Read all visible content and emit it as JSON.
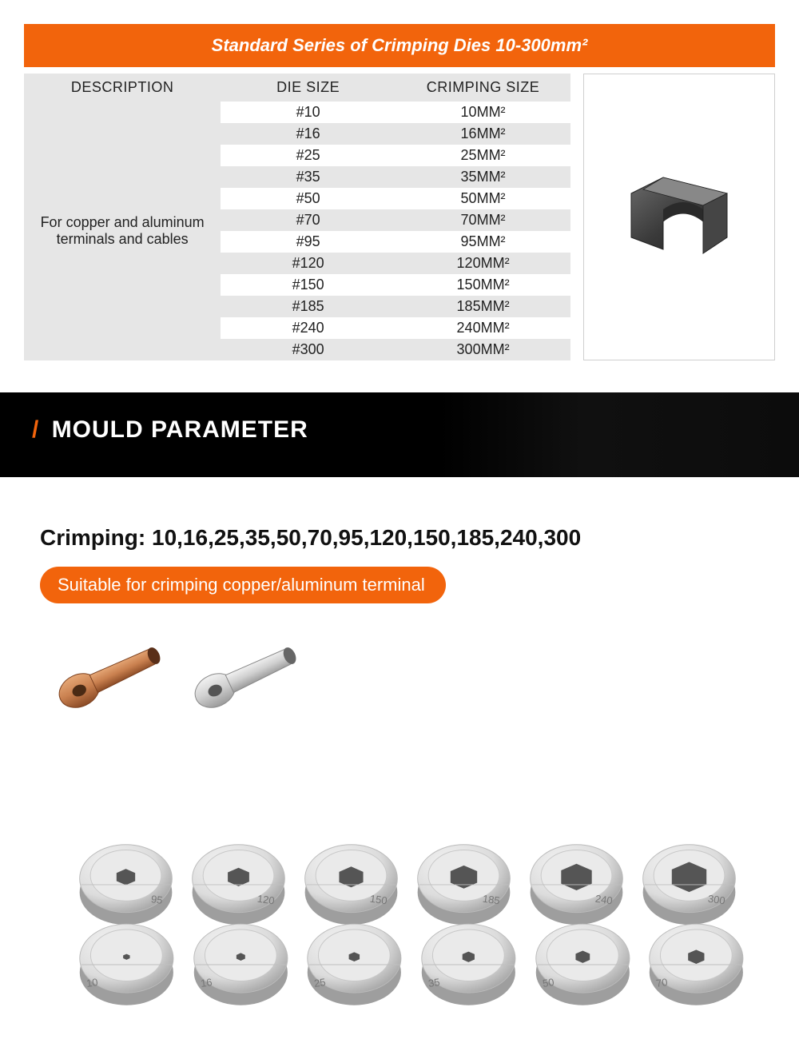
{
  "colors": {
    "accent": "#f2640c",
    "header_bg": "#e6e6e6",
    "row_alt": "#e6e6e6",
    "row_bg": "#ffffff",
    "black": "#000000",
    "white": "#ffffff",
    "text": "#222222",
    "border": "#cfcfcf"
  },
  "title_bar": {
    "text": "Standard Series of Crimping Dies 10-300mm²",
    "fontsize": 22,
    "font_style": "bold italic"
  },
  "table": {
    "columns": [
      "DESCRIPTION",
      "DIE SIZE",
      "CRIMPING SIZE"
    ],
    "description": "For copper and aluminum terminals and cables",
    "rows": [
      {
        "die": "#10",
        "crimp": "10MM²"
      },
      {
        "die": "#16",
        "crimp": "16MM²"
      },
      {
        "die": "#25",
        "crimp": "25MM²"
      },
      {
        "die": "#35",
        "crimp": "35MM²"
      },
      {
        "die": "#50",
        "crimp": "50MM²"
      },
      {
        "die": "#70",
        "crimp": "70MM²"
      },
      {
        "die": "#95",
        "crimp": "95MM²"
      },
      {
        "die": "#120",
        "crimp": "120MM²"
      },
      {
        "die": "#150",
        "crimp": "150MM²"
      },
      {
        "die": "#185",
        "crimp": "185MM²"
      },
      {
        "die": "#240",
        "crimp": "240MM²"
      },
      {
        "die": "#300",
        "crimp": "300MM²"
      }
    ],
    "header_fontsize": 18,
    "cell_fontsize": 18
  },
  "mould_banner": {
    "slash": "/",
    "text": "MOULD PARAMETER",
    "fontsize": 30
  },
  "crimping_line": {
    "label": "Crimping:",
    "values": "10,16,25,35,50,70,95,120,150,185,240,300",
    "fontsize": 28
  },
  "pill": {
    "text": "Suitable for crimping copper/aluminum terminal",
    "fontsize": 22
  },
  "lug_colors": {
    "copper_body": "#c9804f",
    "copper_dark": "#8a4a25",
    "aluminum_body": "#d8d8d8",
    "aluminum_dark": "#9a9a9a"
  },
  "die_ring": {
    "outer": "#dcdcdc",
    "outer_light": "#f4f4f4",
    "outer_dark": "#9e9e9e",
    "inner": "#555555"
  },
  "dies_top": [
    {
      "label": "95",
      "hole": 28
    },
    {
      "label": "120",
      "hole": 32
    },
    {
      "label": "150",
      "hole": 36
    },
    {
      "label": "185",
      "hole": 40
    },
    {
      "label": "240",
      "hole": 46
    },
    {
      "label": "300",
      "hole": 52
    }
  ],
  "dies_bottom": [
    {
      "label": "10",
      "hole": 10
    },
    {
      "label": "16",
      "hole": 13
    },
    {
      "label": "25",
      "hole": 16
    },
    {
      "label": "35",
      "hole": 18
    },
    {
      "label": "50",
      "hole": 21
    },
    {
      "label": "70",
      "hole": 24
    }
  ]
}
